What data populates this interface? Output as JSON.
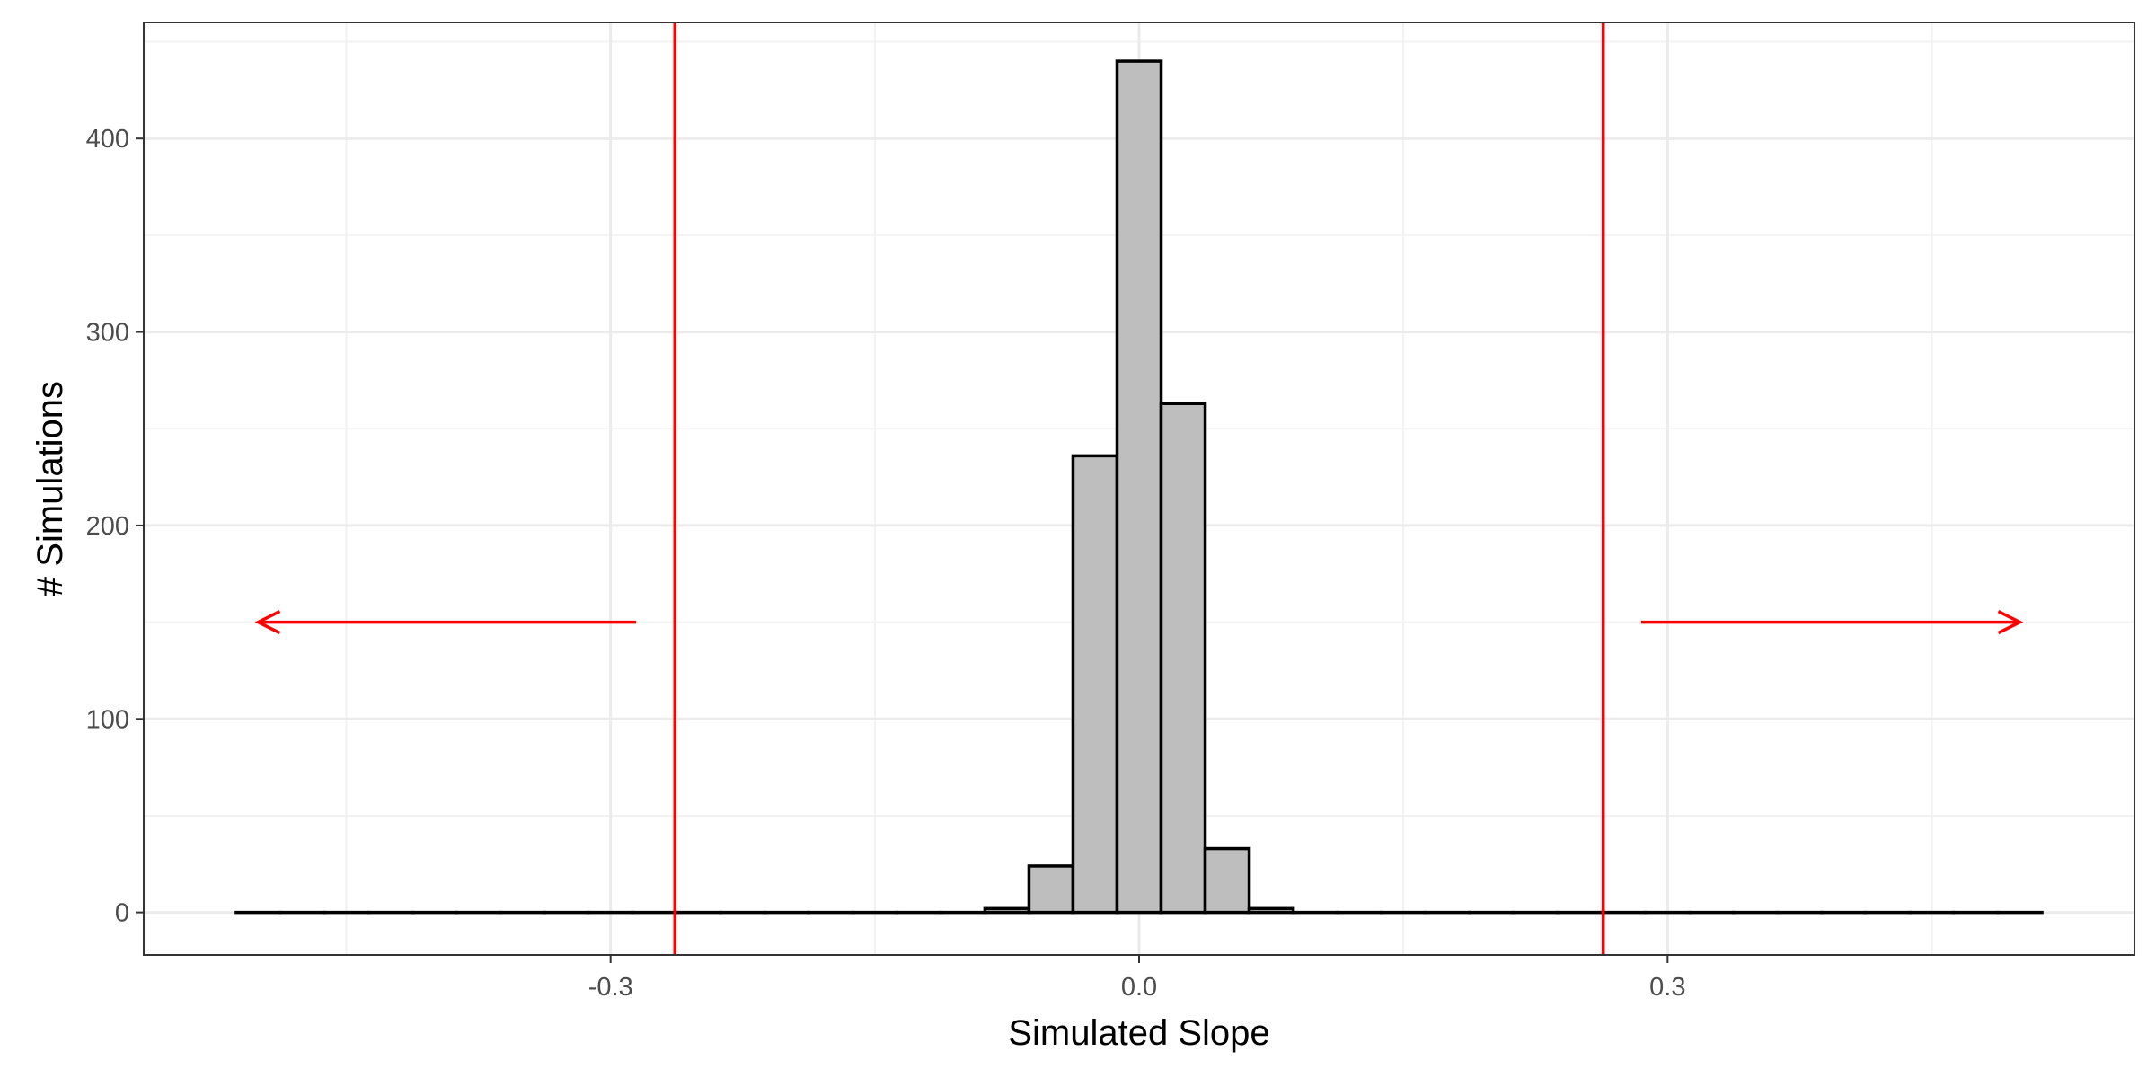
{
  "chart_data": {
    "type": "bar",
    "xlabel": "Simulated Slope",
    "ylabel": "# Simulations",
    "xlim": [
      -0.565,
      0.565
    ],
    "ylim": [
      -22,
      460
    ],
    "x_ticks": [
      -0.3,
      0.0,
      0.3
    ],
    "x_tick_labels": [
      "-0.3",
      "0.0",
      "0.3"
    ],
    "y_ticks": [
      0,
      100,
      200,
      300,
      400
    ],
    "y_tick_labels": [
      "0",
      "100",
      "200",
      "300",
      "400"
    ],
    "grid": true,
    "bin_width": 0.025,
    "bins": [
      {
        "center": -0.5,
        "count": 0
      },
      {
        "center": -0.475,
        "count": 0
      },
      {
        "center": -0.45,
        "count": 0
      },
      {
        "center": -0.425,
        "count": 0
      },
      {
        "center": -0.4,
        "count": 0
      },
      {
        "center": -0.375,
        "count": 0
      },
      {
        "center": -0.35,
        "count": 0
      },
      {
        "center": -0.325,
        "count": 0
      },
      {
        "center": -0.3,
        "count": 0
      },
      {
        "center": -0.275,
        "count": 0
      },
      {
        "center": -0.25,
        "count": 0
      },
      {
        "center": -0.225,
        "count": 0
      },
      {
        "center": -0.2,
        "count": 0
      },
      {
        "center": -0.175,
        "count": 0
      },
      {
        "center": -0.15,
        "count": 0
      },
      {
        "center": -0.125,
        "count": 0
      },
      {
        "center": -0.1,
        "count": 0
      },
      {
        "center": -0.075,
        "count": 2
      },
      {
        "center": -0.05,
        "count": 24
      },
      {
        "center": -0.025,
        "count": 236
      },
      {
        "center": 0.0,
        "count": 440
      },
      {
        "center": 0.025,
        "count": 263
      },
      {
        "center": 0.05,
        "count": 33
      },
      {
        "center": 0.075,
        "count": 2
      },
      {
        "center": 0.1,
        "count": 0
      },
      {
        "center": 0.125,
        "count": 0
      },
      {
        "center": 0.15,
        "count": 0
      },
      {
        "center": 0.175,
        "count": 0
      },
      {
        "center": 0.2,
        "count": 0
      },
      {
        "center": 0.225,
        "count": 0
      },
      {
        "center": 0.25,
        "count": 0
      },
      {
        "center": 0.275,
        "count": 0
      },
      {
        "center": 0.3,
        "count": 0
      },
      {
        "center": 0.325,
        "count": 0
      },
      {
        "center": 0.35,
        "count": 0
      },
      {
        "center": 0.375,
        "count": 0
      },
      {
        "center": 0.4,
        "count": 0
      },
      {
        "center": 0.425,
        "count": 0
      },
      {
        "center": 0.45,
        "count": 0
      },
      {
        "center": 0.475,
        "count": 0
      },
      {
        "center": 0.5,
        "count": 0
      }
    ],
    "reference_lines": [
      -0.2635,
      0.2635
    ],
    "arrows": [
      {
        "from": -0.2855,
        "to": -0.5,
        "y": 150
      },
      {
        "from": 0.285,
        "to": 0.5,
        "y": 150
      }
    ],
    "colors": {
      "bar_fill": "#bebebe",
      "bar_stroke": "#000000",
      "reference": "#ff0000",
      "grid_major": "#ebebeb",
      "grid_minor": "#f2f2f2",
      "panel_border": "#333333"
    }
  }
}
